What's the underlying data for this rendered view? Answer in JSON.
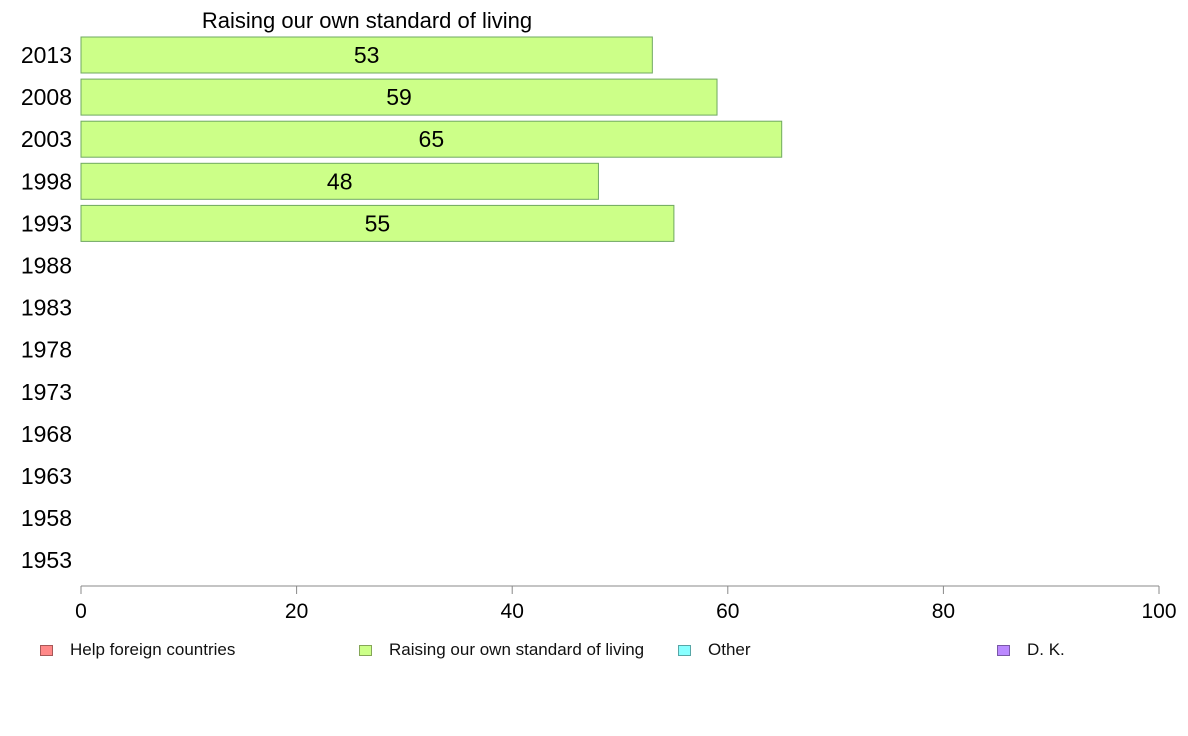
{
  "chart_data": {
    "type": "bar",
    "orientation": "horizontal",
    "title": "Raising our own standard of living",
    "categories": [
      "2013",
      "2008",
      "2003",
      "1998",
      "1993",
      "1988",
      "1983",
      "1978",
      "1973",
      "1968",
      "1963",
      "1958",
      "1953"
    ],
    "series": [
      {
        "name": "Raising our own standard of living",
        "values": [
          53,
          59,
          65,
          48,
          55,
          null,
          null,
          null,
          null,
          null,
          null,
          null,
          null
        ],
        "color": "#ccff88"
      }
    ],
    "xlim": [
      0,
      100
    ],
    "xticks": [
      "0",
      "20",
      "40",
      "60",
      "80",
      "100"
    ],
    "grid": false,
    "legend": {
      "placement": "bottom",
      "items": [
        {
          "label": "Help foreign countries",
          "color": "#ff8888"
        },
        {
          "label": "Raising our own standard of living",
          "color": "#ccff88"
        },
        {
          "label": "Other",
          "color": "#88ffff"
        },
        {
          "label": "D. K.",
          "color": "#bb88ff"
        }
      ]
    }
  }
}
